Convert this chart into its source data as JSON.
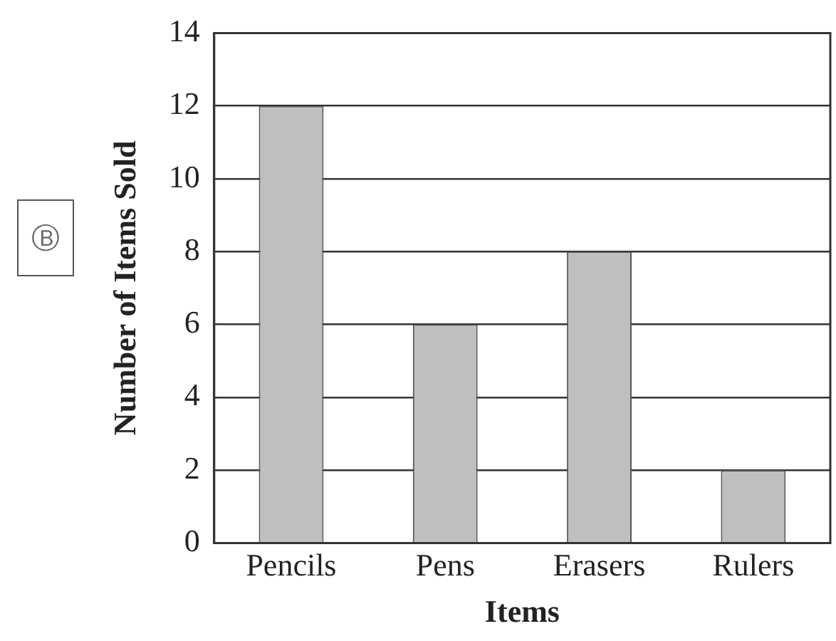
{
  "chart_data": {
    "type": "bar",
    "xlabel": "Items",
    "ylabel": "Number of Items Sold",
    "categories": [
      "Pencils",
      "Pens",
      "Erasers",
      "Rulers"
    ],
    "values": [
      12,
      6,
      8,
      2
    ],
    "color": "#bfbfbf",
    "ylim": [
      0,
      14
    ],
    "yticks": [
      0,
      2,
      4,
      6,
      8,
      10,
      12,
      14
    ],
    "grid": "y",
    "legend": false,
    "annotations": [
      "Ⓑ"
    ]
  }
}
